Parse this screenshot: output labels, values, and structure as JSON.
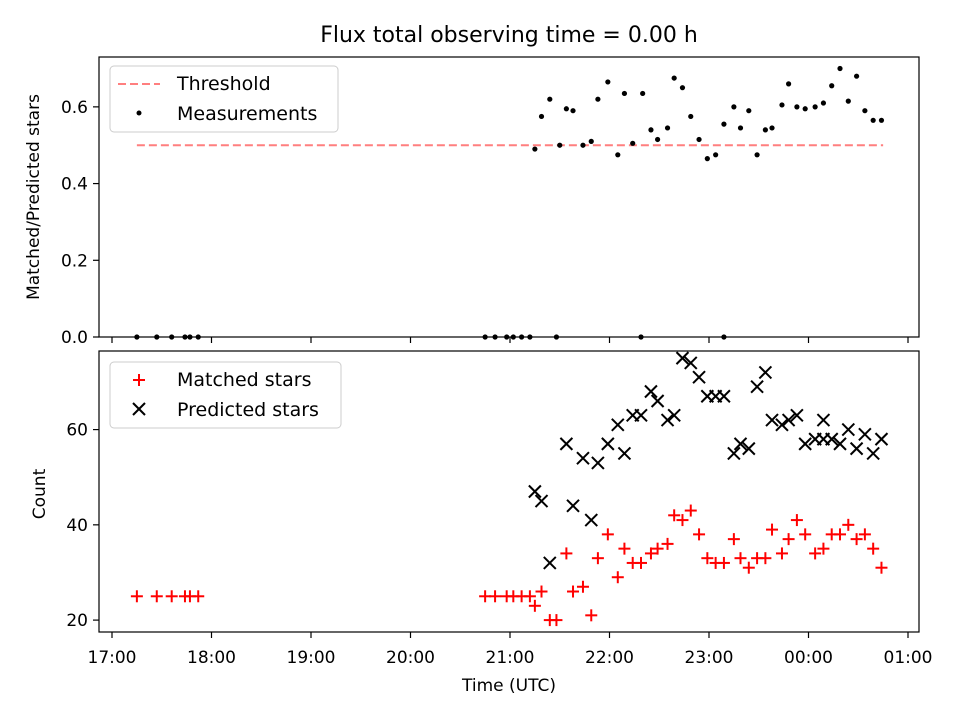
{
  "chart_data": [
    {
      "type": "scatter",
      "title": "Flux total observing time = 0.00 h",
      "xlabel": "",
      "ylabel": "Matched/Predicted stars",
      "ylim": [
        0,
        0.73
      ],
      "yticks": [
        "0.0",
        "0.2",
        "0.4",
        "0.6"
      ],
      "legend": "top-left",
      "series": [
        {
          "name": "Threshold",
          "style": "dashed-line",
          "color": "#ff7f7f",
          "x": [
            "17:15",
            "00:45"
          ],
          "y": [
            0.5,
            0.5
          ]
        },
        {
          "name": "Measurements",
          "style": "dot",
          "color": "#000000",
          "x": [
            "17:15",
            "17:27",
            "17:36",
            "17:44",
            "17:47",
            "17:52",
            "20:45",
            "20:51",
            "20:58",
            "21:02",
            "21:07",
            "21:12",
            "21:15",
            "21:19",
            "21:24",
            "21:28",
            "21:34",
            "21:38",
            "21:44",
            "21:49",
            "21:53",
            "21:59",
            "22:05",
            "22:09",
            "22:14",
            "22:19",
            "22:25",
            "22:29",
            "22:35",
            "22:39",
            "22:44",
            "22:49",
            "22:54",
            "22:59",
            "23:04",
            "23:09",
            "23:15",
            "23:19",
            "23:24",
            "23:29",
            "23:34",
            "23:38",
            "23:44",
            "23:48",
            "23:53",
            "23:58",
            "00:04",
            "00:09",
            "00:14",
            "00:19",
            "00:24",
            "00:29",
            "00:34",
            "00:39",
            "00:44",
            "22:20",
            "23:09",
            "21:30"
          ],
          "y": [
            0,
            0,
            0,
            0,
            0,
            0,
            0,
            0,
            0,
            0,
            0,
            0,
            0.49,
            0.575,
            0.62,
            0,
            0.595,
            0.59,
            0.5,
            0.51,
            0.62,
            0.665,
            0.475,
            0.635,
            0.505,
            0,
            0.54,
            0.515,
            0.545,
            0.675,
            0.65,
            0.575,
            0.515,
            0.465,
            0.475,
            0.555,
            0.6,
            0.545,
            0.59,
            0.475,
            0.54,
            0.545,
            0.605,
            0.66,
            0.6,
            0.595,
            0.6,
            0.61,
            0.655,
            0.7,
            0.615,
            0.68,
            0.59,
            0.565,
            0.565,
            0.635,
            0,
            0.5
          ]
        }
      ]
    },
    {
      "type": "scatter",
      "title": "",
      "xlabel": "Time (UTC)",
      "ylabel": "Count",
      "ylim": [
        17.5,
        76.5
      ],
      "yticks": [
        "20",
        "40",
        "60"
      ],
      "xticks": [
        "17:00",
        "18:00",
        "19:00",
        "20:00",
        "21:00",
        "22:00",
        "23:00",
        "00:00",
        "01:00"
      ],
      "legend": "top-left",
      "series": [
        {
          "name": "Matched stars",
          "marker": "plus",
          "color": "#ff0000",
          "x": [
            "17:15",
            "17:27",
            "17:36",
            "17:44",
            "17:47",
            "17:52",
            "20:45",
            "20:51",
            "20:58",
            "21:02",
            "21:07",
            "21:12",
            "21:15",
            "21:19",
            "21:24",
            "21:28",
            "21:34",
            "21:38",
            "21:44",
            "21:49",
            "21:53",
            "21:59",
            "22:05",
            "22:09",
            "22:14",
            "22:19",
            "22:25",
            "22:29",
            "22:35",
            "22:39",
            "22:44",
            "22:49",
            "22:54",
            "22:59",
            "23:04",
            "23:09",
            "23:15",
            "23:19",
            "23:24",
            "23:29",
            "23:34",
            "23:38",
            "23:44",
            "23:48",
            "23:53",
            "23:58",
            "00:04",
            "00:09",
            "00:14",
            "00:19",
            "00:24",
            "00:29",
            "00:34",
            "00:39",
            "00:44"
          ],
          "y": [
            25,
            25,
            25,
            25,
            25,
            25,
            25,
            25,
            25,
            25,
            25,
            25,
            23,
            26,
            20,
            20,
            34,
            26,
            27,
            21,
            33,
            38,
            29,
            35,
            32,
            32,
            34,
            35,
            36,
            42,
            41,
            43,
            38,
            33,
            32,
            32,
            37,
            33,
            31,
            33,
            33,
            39,
            34,
            37,
            41,
            38,
            34,
            35,
            38,
            38,
            40,
            37,
            38,
            35,
            31
          ]
        },
        {
          "name": "Predicted stars",
          "marker": "x",
          "color": "#000000",
          "x": [
            "21:15",
            "21:19",
            "21:24",
            "21:34",
            "21:38",
            "21:44",
            "21:49",
            "21:53",
            "21:59",
            "22:05",
            "22:09",
            "22:14",
            "22:19",
            "22:25",
            "22:29",
            "22:35",
            "22:39",
            "22:44",
            "22:49",
            "22:54",
            "22:59",
            "23:04",
            "23:09",
            "23:15",
            "23:19",
            "23:24",
            "23:29",
            "23:34",
            "23:38",
            "23:44",
            "23:48",
            "23:53",
            "23:58",
            "00:04",
            "00:09",
            "00:14",
            "00:19",
            "00:24",
            "00:29",
            "00:34",
            "00:39",
            "00:44",
            "00:09"
          ],
          "y": [
            47,
            45,
            32,
            57,
            44,
            54,
            41,
            53,
            57,
            61,
            55,
            63,
            63,
            68,
            66,
            62,
            63,
            75,
            74,
            71,
            67,
            67,
            67,
            55,
            57,
            56,
            69,
            72,
            62,
            61,
            62,
            63,
            57,
            58,
            62,
            58,
            57,
            60,
            56,
            59,
            55,
            58,
            58
          ]
        }
      ]
    }
  ]
}
